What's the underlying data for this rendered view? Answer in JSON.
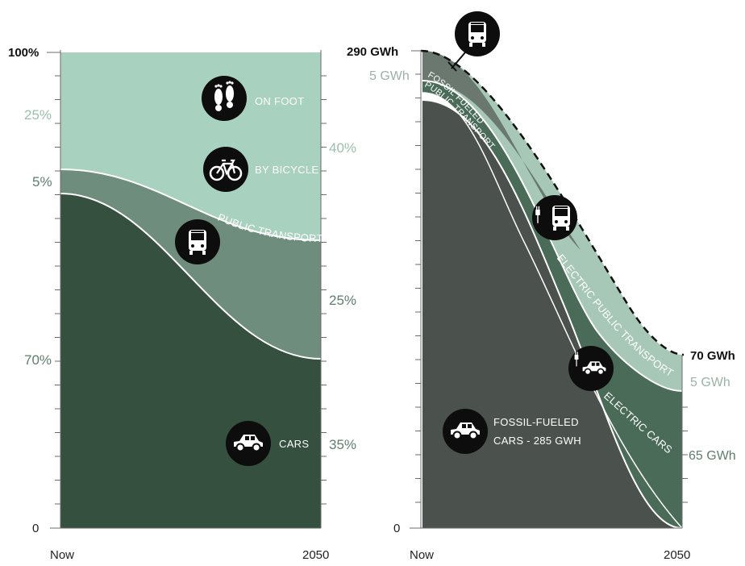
{
  "chart_data": [
    {
      "type": "area",
      "stacking": "percent",
      "x": [
        "Now",
        "2050"
      ],
      "ylim": [
        0,
        100
      ],
      "y_tick_labels": {
        "top": "100%",
        "bottom": "0"
      },
      "series": [
        {
          "name": "CARS",
          "values": [
            70,
            35
          ],
          "color": "#36503f",
          "start_label": "70%",
          "end_label": "35%"
        },
        {
          "name": "PUBLIC TRANSPORT",
          "values": [
            5,
            25
          ],
          "color": "#6f8d7c",
          "start_label": "5%",
          "end_label": "25%"
        },
        {
          "name": "BY BICYCLE",
          "values": [
            25,
            40
          ],
          "color": "#a9d1bf",
          "start_label": "25%",
          "end_label": "40%",
          "note": "combined with ON FOOT"
        },
        {
          "name": "ON FOOT",
          "values": [
            null,
            null
          ],
          "color": "#a9d1bf"
        }
      ],
      "icons": [
        "footprints-icon",
        "bicycle-icon",
        "bus-icon",
        "car-icon"
      ]
    },
    {
      "type": "area",
      "stacking": "absolute",
      "x": [
        "Now",
        "2050"
      ],
      "unit": "GWh",
      "total_labels": {
        "start": "290 GWh",
        "end": "70 GWh"
      },
      "series": [
        {
          "name": "FOSSIL-FUELED CARS - 285 GWH",
          "values": [
            285,
            0
          ],
          "color": "#4b514d",
          "title_line1": "FOSSIL-FUELED",
          "title_line2": "CARS - 285 GWH"
        },
        {
          "name": "FOSSIL FUELED PUBLIC TRANSPORT",
          "values": [
            5,
            0
          ],
          "color": "#6a786f",
          "start_label": "5 GWh",
          "title_line1": "FOSSIL FUELED",
          "title_line2": "PUBLIC TRANSPORT"
        },
        {
          "name": "ELECTRIC CARS",
          "values": [
            0,
            65
          ],
          "color": "#4a6b58",
          "end_label": "65 GWh"
        },
        {
          "name": "ELECTRIC PUBLIC TRANSPORT",
          "values": [
            0,
            5
          ],
          "color": "#a7c8b7",
          "end_label": "5 GWh"
        }
      ],
      "icons": [
        "bus-icon",
        "electric-bus-icon",
        "electric-car-icon",
        "car-icon"
      ]
    }
  ],
  "left_chart": {
    "labels": {
      "on_foot": "ON FOOT",
      "by_bicycle": "BY BICYCLE",
      "public_transport": "PUBLIC TRANSPORT",
      "cars": "CARS"
    }
  },
  "right_chart": {
    "labels": {
      "electric_public_transport": "ELECTRIC PUBLIC TRANSPORT",
      "electric_cars": "ELECTRIC CARS"
    },
    "y_zero": "0"
  },
  "x_axis": {
    "start": "Now",
    "end": "2050"
  },
  "colors": {
    "cars": "#36503f",
    "public_transport": "#6f8d7c",
    "active": "#a9d1bf",
    "fossil_cars": "#4b514d",
    "fossil_pt": "#6a786f",
    "electric_cars": "#4a6b58",
    "electric_pt": "#a7c8b7",
    "icon_bg": "#0d0d0d"
  }
}
